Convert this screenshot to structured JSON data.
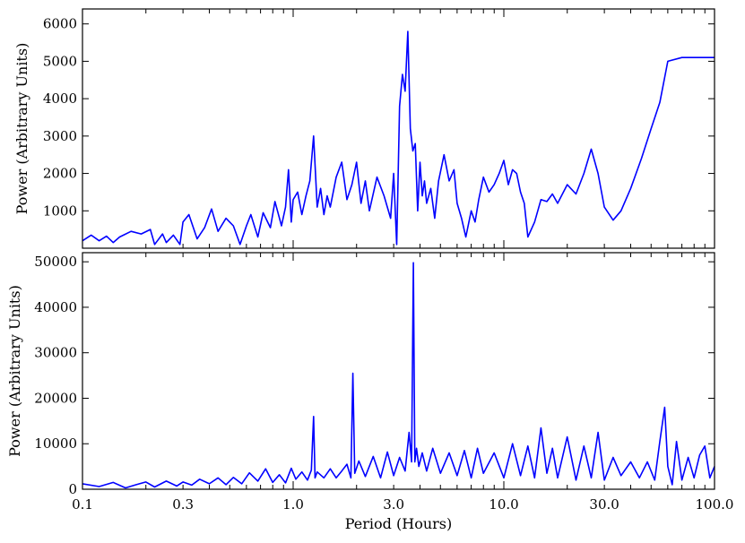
{
  "figure": {
    "xlabel": "Period (Hours)"
  },
  "chart_data": [
    {
      "type": "line",
      "panel": "top",
      "title": "",
      "xlabel": "",
      "ylabel": "Power (Arbitrary Units)",
      "xscale": "log",
      "xlim": [
        0.1,
        100.0
      ],
      "ylim": [
        0,
        6400
      ],
      "yticks": [
        1000,
        2000,
        3000,
        4000,
        5000,
        6000
      ],
      "grid": false,
      "series": [
        {
          "color": "#0000ff",
          "x": [
            0.1,
            0.11,
            0.12,
            0.13,
            0.14,
            0.15,
            0.17,
            0.19,
            0.21,
            0.22,
            0.24,
            0.25,
            0.27,
            0.29,
            0.3,
            0.32,
            0.35,
            0.38,
            0.41,
            0.44,
            0.48,
            0.52,
            0.56,
            0.6,
            0.63,
            0.68,
            0.72,
            0.78,
            0.82,
            0.88,
            0.92,
            0.95,
            0.98,
            1.0,
            1.05,
            1.1,
            1.15,
            1.2,
            1.25,
            1.3,
            1.35,
            1.4,
            1.45,
            1.5,
            1.6,
            1.7,
            1.8,
            1.9,
            2.0,
            2.1,
            2.2,
            2.3,
            2.5,
            2.7,
            2.9,
            3.0,
            3.1,
            3.2,
            3.3,
            3.4,
            3.5,
            3.6,
            3.7,
            3.8,
            3.9,
            4.0,
            4.1,
            4.2,
            4.3,
            4.5,
            4.7,
            4.9,
            5.2,
            5.5,
            5.8,
            6.0,
            6.3,
            6.6,
            7.0,
            7.3,
            7.6,
            8.0,
            8.5,
            9.0,
            9.5,
            10.0,
            10.5,
            11.0,
            11.5,
            12.0,
            12.5,
            13.0,
            14.0,
            15.0,
            16.0,
            17.0,
            18.0,
            20.0,
            22.0,
            24.0,
            26.0,
            28.0,
            30.0,
            33.0,
            36.0,
            40.0,
            45.0,
            50.0,
            55.0,
            60.0,
            70.0,
            80.0,
            90.0,
            100.0
          ],
          "y": [
            200,
            350,
            200,
            320,
            150,
            300,
            450,
            380,
            500,
            100,
            380,
            150,
            350,
            100,
            700,
            900,
            250,
            550,
            1050,
            450,
            800,
            600,
            100,
            600,
            900,
            300,
            950,
            550,
            1250,
            600,
            1100,
            2100,
            700,
            1300,
            1500,
            900,
            1400,
            1800,
            3000,
            1100,
            1600,
            900,
            1400,
            1100,
            1900,
            2300,
            1300,
            1700,
            2300,
            1200,
            1800,
            1000,
            1900,
            1400,
            800,
            2000,
            100,
            3800,
            4650,
            4200,
            5800,
            3200,
            2600,
            2800,
            1000,
            2300,
            1400,
            1800,
            1200,
            1600,
            800,
            1800,
            2500,
            1800,
            2100,
            1200,
            800,
            300,
            1000,
            700,
            1300,
            1900,
            1500,
            1700,
            2000,
            2350,
            1700,
            2100,
            2000,
            1500,
            1200,
            300,
            700,
            1300,
            1250,
            1450,
            1200,
            1700,
            1450,
            2000,
            2650,
            2000,
            1100,
            750,
            1000,
            1600,
            2400,
            3200,
            3900,
            5000,
            5100,
            5100,
            5100,
            5100
          ]
        }
      ]
    },
    {
      "type": "line",
      "panel": "bottom",
      "title": "",
      "xlabel": "Period (Hours)",
      "ylabel": "Power (Arbitrary Units)",
      "xscale": "log",
      "xlim": [
        0.1,
        100.0
      ],
      "ylim": [
        0,
        52000
      ],
      "yticks": [
        0,
        10000,
        20000,
        30000,
        40000,
        50000
      ],
      "xticks": [
        0.1,
        0.3,
        1.0,
        3.0,
        10.0,
        30.0,
        100.0
      ],
      "xtick_labels": [
        "0.1",
        "0.3",
        "1.0",
        "3.0",
        "10.0",
        "30.0",
        "100.0"
      ],
      "grid": false,
      "series": [
        {
          "color": "#0000ff",
          "x": [
            0.1,
            0.12,
            0.14,
            0.16,
            0.18,
            0.2,
            0.22,
            0.25,
            0.28,
            0.3,
            0.33,
            0.36,
            0.4,
            0.44,
            0.48,
            0.52,
            0.57,
            0.62,
            0.68,
            0.74,
            0.8,
            0.86,
            0.92,
            0.98,
            1.03,
            1.1,
            1.17,
            1.22,
            1.25,
            1.27,
            1.3,
            1.4,
            1.5,
            1.6,
            1.7,
            1.8,
            1.88,
            1.92,
            1.96,
            2.05,
            2.2,
            2.4,
            2.6,
            2.8,
            3.0,
            3.2,
            3.4,
            3.55,
            3.65,
            3.72,
            3.78,
            3.85,
            3.95,
            4.1,
            4.3,
            4.6,
            5.0,
            5.5,
            6.0,
            6.5,
            7.0,
            7.5,
            8.0,
            9.0,
            10.0,
            11.0,
            12.0,
            13.0,
            14.0,
            15.0,
            16.0,
            17.0,
            18.0,
            20.0,
            22.0,
            24.0,
            26.0,
            28.0,
            30.0,
            33.0,
            36.0,
            40.0,
            44.0,
            48.0,
            52.0,
            55.0,
            58.0,
            60.0,
            63.0,
            66.0,
            70.0,
            75.0,
            80.0,
            85.0,
            90.0,
            95.0,
            100.0
          ],
          "y": [
            1200,
            600,
            1500,
            300,
            1000,
            1600,
            500,
            1800,
            700,
            1600,
            900,
            2200,
            1200,
            2500,
            1000,
            2600,
            1200,
            3600,
            1800,
            4500,
            1500,
            3200,
            1400,
            4600,
            2200,
            3800,
            2000,
            4200,
            16000,
            2500,
            3800,
            2500,
            4500,
            2500,
            4000,
            5500,
            2500,
            25500,
            3500,
            6200,
            2800,
            7200,
            2500,
            8200,
            3000,
            7000,
            4000,
            12500,
            6000,
            49800,
            6000,
            9000,
            5000,
            8000,
            4000,
            9000,
            3500,
            8000,
            3000,
            8500,
            2500,
            9000,
            3500,
            8000,
            2500,
            10000,
            3000,
            9500,
            2500,
            13500,
            3500,
            9000,
            2500,
            11500,
            2000,
            9500,
            2500,
            12500,
            2000,
            7000,
            3000,
            6000,
            2500,
            6000,
            2000,
            10500,
            18000,
            5000,
            1000,
            10500,
            2000,
            7000,
            2500,
            7500,
            9500,
            2500,
            5000
          ]
        }
      ]
    }
  ]
}
